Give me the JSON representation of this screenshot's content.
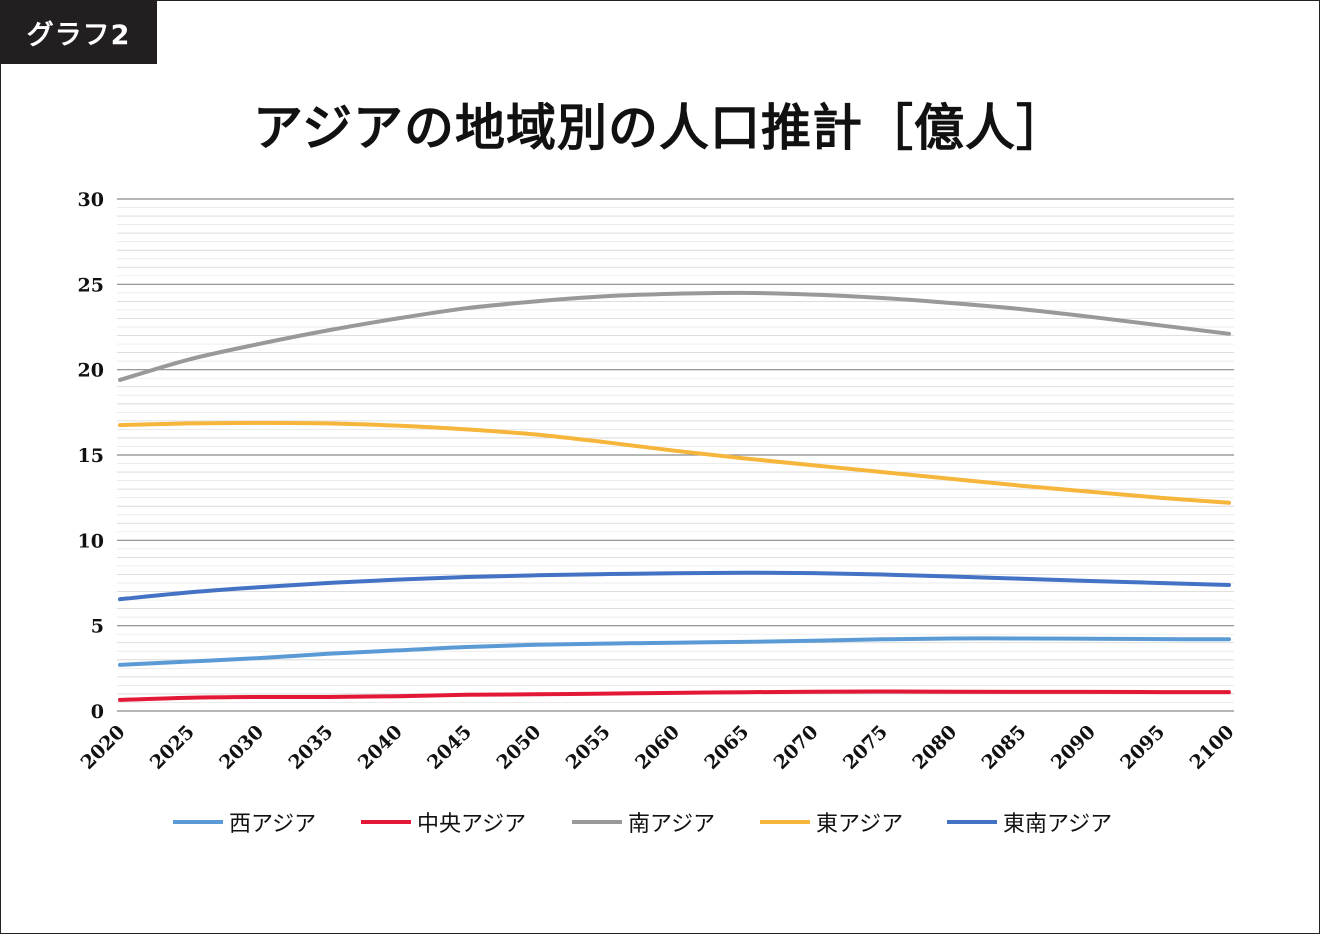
{
  "badge": "グラフ2",
  "title": "アジアの地域別の人口推計［億人］",
  "chart_data": {
    "type": "line",
    "title": "アジアの地域別の人口推計［億人］",
    "x": [
      2020,
      2025,
      2030,
      2035,
      2040,
      2045,
      2050,
      2055,
      2060,
      2065,
      2070,
      2075,
      2080,
      2085,
      2090,
      2095,
      2100
    ],
    "ylim": [
      0,
      30
    ],
    "yticks": [
      0,
      5,
      10,
      15,
      20,
      25,
      30
    ],
    "minor_step": 1,
    "grid": true,
    "legend_position": "bottom",
    "series": [
      {
        "name": "西アジア",
        "color": "#5b9bd5",
        "values": [
          2.7,
          2.9,
          3.1,
          3.35,
          3.55,
          3.75,
          3.88,
          3.95,
          4.0,
          4.05,
          4.12,
          4.2,
          4.25,
          4.25,
          4.23,
          4.21,
          4.2
        ]
      },
      {
        "name": "中央アジア",
        "color": "#e31837",
        "values": [
          0.65,
          0.78,
          0.82,
          0.82,
          0.87,
          0.95,
          0.98,
          1.02,
          1.06,
          1.1,
          1.13,
          1.14,
          1.13,
          1.12,
          1.12,
          1.11,
          1.11
        ]
      },
      {
        "name": "南アジア",
        "color": "#999999",
        "values": [
          19.4,
          20.6,
          21.5,
          22.3,
          23.0,
          23.6,
          24.0,
          24.3,
          24.45,
          24.5,
          24.4,
          24.2,
          23.9,
          23.55,
          23.1,
          22.6,
          22.1
        ]
      },
      {
        "name": "東アジア",
        "color": "#f6b53b",
        "values": [
          16.75,
          16.85,
          16.88,
          16.85,
          16.72,
          16.5,
          16.2,
          15.75,
          15.25,
          14.8,
          14.4,
          14.0,
          13.6,
          13.2,
          12.85,
          12.5,
          12.2
        ]
      },
      {
        "name": "東南アジア",
        "color": "#4472c4",
        "values": [
          6.55,
          6.95,
          7.25,
          7.5,
          7.7,
          7.85,
          7.95,
          8.02,
          8.07,
          8.1,
          8.08,
          8.0,
          7.88,
          7.75,
          7.62,
          7.5,
          7.38
        ]
      }
    ]
  }
}
